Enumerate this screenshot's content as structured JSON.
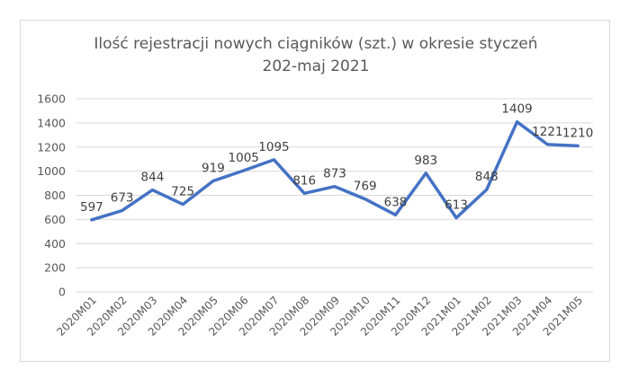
{
  "chart_data": {
    "type": "line",
    "title": "Ilość rejestracji nowych ciągników (szt.) w okresie styczeń 202-maj 2021",
    "title_lines": [
      "Ilość rejestracji nowych ciągników (szt.) w okresie styczeń",
      "202-maj 2021"
    ],
    "categories": [
      "2020M01",
      "2020M02",
      "2020M03",
      "2020M04",
      "2020M05",
      "2020M06",
      "2020M07",
      "2020M08",
      "2020M09",
      "2020M10",
      "2020M11",
      "2020M12",
      "2021M01",
      "2021M02",
      "2021M03",
      "2021M04",
      "2021M05"
    ],
    "series": [
      {
        "values": [
          597,
          673,
          844,
          725,
          919,
          1005,
          1095,
          816,
          873,
          769,
          638,
          983,
          613,
          848,
          1409,
          1221,
          1210
        ],
        "color": "#4472c4"
      }
    ],
    "ylim": [
      0,
      1600
    ],
    "yticks": [
      "0",
      "200",
      "400",
      "600",
      "800",
      "1000",
      "1200",
      "1400",
      "1600"
    ],
    "grid": true,
    "legend": "none"
  }
}
